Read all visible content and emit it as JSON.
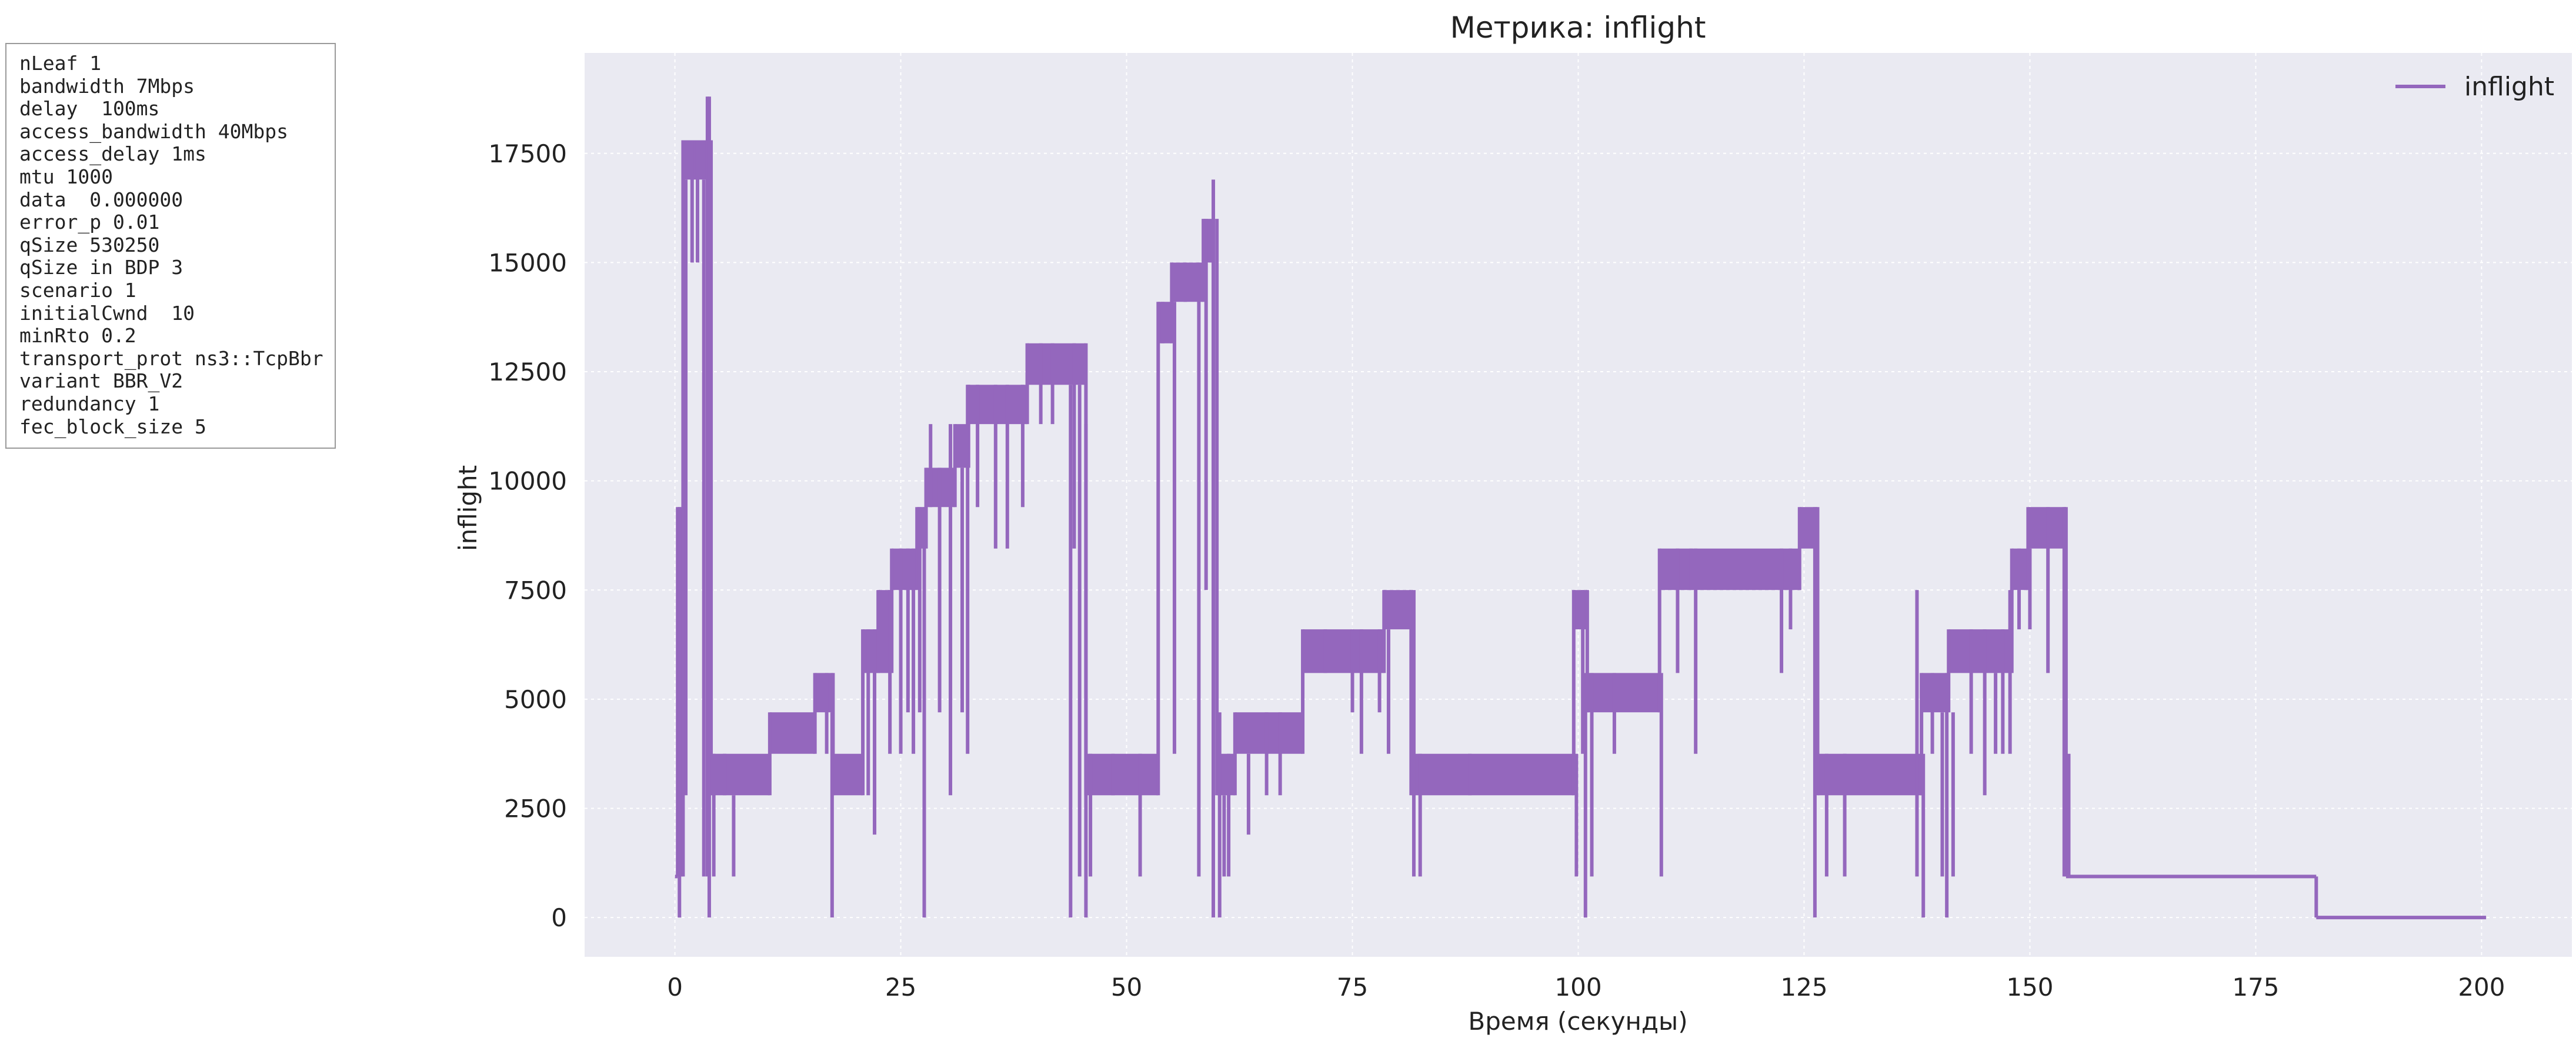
{
  "params": {
    "lines": [
      "nLeaf 1",
      "bandwidth 7Mbps",
      "delay  100ms",
      "access_bandwidth 40Mbps",
      "access_delay 1ms",
      "mtu 1000",
      "data  0.000000",
      "error_p 0.01",
      "qSize 530250",
      "qSize in BDP 3",
      "scenario 1",
      "initialCwnd  10",
      "minRto 0.2",
      "transport_prot ns3::TcpBbr",
      "variant BBR_V2",
      "redundancy 1",
      "fec_block_size 5"
    ]
  },
  "chart_data": {
    "type": "line",
    "title": "Метрика: inflight",
    "xlabel": "Время (секунды)",
    "ylabel": "inflight",
    "xlim": [
      -10,
      210
    ],
    "ylim": [
      -900,
      19800
    ],
    "xticks": [
      0,
      25,
      50,
      75,
      100,
      125,
      150,
      175,
      200
    ],
    "xtick_labels": [
      "0",
      "25",
      "50",
      "75",
      "100",
      "125",
      "150",
      "175",
      "200"
    ],
    "yticks": [
      0,
      2500,
      5000,
      7500,
      10000,
      12500,
      15000,
      17500
    ],
    "ytick_labels": [
      "0",
      "2500",
      "5000",
      "7500",
      "10000",
      "12500",
      "15000",
      "17500"
    ],
    "grid": true,
    "legend_position": "top-right",
    "colors": {
      "line": "#9467bd",
      "plot_bg": "#eaeaf2",
      "grid": "#ffffff"
    },
    "series": [
      {
        "name": "inflight",
        "bands": [
          [
            0.0,
            0.3,
            940,
            940
          ],
          [
            0.3,
            0.9,
            940,
            9400
          ],
          [
            0.9,
            3.7,
            16900,
            17800
          ],
          [
            4.0,
            10.5,
            2800,
            3750
          ],
          [
            10.5,
            15.5,
            3750,
            4700
          ],
          [
            15.5,
            17.5,
            4700,
            5600
          ],
          [
            17.5,
            20.8,
            2800,
            3750
          ],
          [
            20.8,
            22.5,
            5600,
            6600
          ],
          [
            22.5,
            24.0,
            5600,
            7500
          ],
          [
            24.0,
            26.8,
            7500,
            8450
          ],
          [
            26.8,
            27.8,
            8450,
            9400
          ],
          [
            27.8,
            31.0,
            9400,
            10300
          ],
          [
            31.0,
            32.5,
            10300,
            11300
          ],
          [
            32.5,
            39.0,
            11300,
            12200
          ],
          [
            39.0,
            45.5,
            12200,
            13150
          ],
          [
            45.5,
            53.5,
            2800,
            3750
          ],
          [
            53.5,
            55.0,
            13150,
            14100
          ],
          [
            55.0,
            58.5,
            14100,
            15000
          ],
          [
            58.5,
            59.5,
            15000,
            16000
          ],
          [
            60.0,
            62.0,
            2800,
            3750
          ],
          [
            62.0,
            69.5,
            3750,
            4700
          ],
          [
            69.5,
            78.5,
            5600,
            6600
          ],
          [
            78.5,
            81.5,
            6600,
            7500
          ],
          [
            81.5,
            99.5,
            2800,
            3750
          ],
          [
            99.5,
            101.0,
            6600,
            7500
          ],
          [
            101.0,
            109.0,
            4700,
            5600
          ],
          [
            109.0,
            112.5,
            7500,
            8450
          ],
          [
            112.5,
            124.5,
            7500,
            8450
          ],
          [
            124.5,
            126.5,
            8450,
            9400
          ],
          [
            126.5,
            138.0,
            2800,
            3750
          ],
          [
            138.0,
            141.0,
            4700,
            5600
          ],
          [
            141.0,
            148.0,
            5600,
            6600
          ],
          [
            148.0,
            149.8,
            7500,
            8450
          ],
          [
            149.8,
            154.0,
            8450,
            9400
          ],
          [
            154.0,
            181.7,
            940,
            940
          ],
          [
            181.7,
            200.5,
            0,
            0
          ]
        ],
        "spikes": [
          [
            0.5,
            0,
            9400
          ],
          [
            1.2,
            2800,
            16900
          ],
          [
            1.9,
            15000,
            17800
          ],
          [
            2.5,
            17800,
            15000
          ],
          [
            3.2,
            16900,
            940
          ],
          [
            3.6,
            940,
            18800
          ],
          [
            3.8,
            18800,
            0
          ],
          [
            4.3,
            3750,
            940
          ],
          [
            5.5,
            3750,
            2800
          ],
          [
            6.5,
            2800,
            940
          ],
          [
            16.8,
            5600,
            3750
          ],
          [
            17.4,
            4700,
            0
          ],
          [
            21.4,
            6600,
            2800
          ],
          [
            22.1,
            6600,
            1900
          ],
          [
            23.8,
            7500,
            3750
          ],
          [
            25.0,
            8450,
            3750
          ],
          [
            25.8,
            8450,
            4700
          ],
          [
            26.4,
            8450,
            3750
          ],
          [
            27.1,
            9400,
            4700
          ],
          [
            27.6,
            9400,
            0
          ],
          [
            28.3,
            11300,
            9400
          ],
          [
            29.3,
            10300,
            4700
          ],
          [
            30.5,
            11300,
            2800
          ],
          [
            31.8,
            10300,
            4700
          ],
          [
            32.4,
            12200,
            3750
          ],
          [
            33.5,
            12200,
            9400
          ],
          [
            35.5,
            12200,
            8450
          ],
          [
            36.8,
            12200,
            8450
          ],
          [
            38.5,
            12200,
            9400
          ],
          [
            40.5,
            13150,
            11300
          ],
          [
            41.8,
            13150,
            11300
          ],
          [
            43.8,
            12200,
            0
          ],
          [
            44.2,
            13150,
            8450
          ],
          [
            44.8,
            12200,
            940
          ],
          [
            45.5,
            11300,
            0
          ],
          [
            46.0,
            3750,
            940
          ],
          [
            48.5,
            3750,
            2800
          ],
          [
            51.5,
            3750,
            940
          ],
          [
            54.0,
            14100,
            13150
          ],
          [
            55.3,
            14100,
            3750
          ],
          [
            56.5,
            15000,
            14100
          ],
          [
            58.0,
            15000,
            940
          ],
          [
            58.8,
            16000,
            7500
          ],
          [
            59.6,
            16900,
            0
          ],
          [
            60.3,
            4700,
            0
          ],
          [
            60.8,
            2800,
            940
          ],
          [
            61.3,
            3750,
            940
          ],
          [
            63.5,
            3750,
            1900
          ],
          [
            65.5,
            4700,
            2800
          ],
          [
            67.0,
            4700,
            2800
          ],
          [
            72.0,
            6600,
            5600
          ],
          [
            75.0,
            6600,
            4700
          ],
          [
            76.0,
            6600,
            3750
          ],
          [
            78.0,
            6600,
            4700
          ],
          [
            79.0,
            6600,
            3750
          ],
          [
            81.8,
            7500,
            940
          ],
          [
            82.5,
            3750,
            940
          ],
          [
            88.0,
            3750,
            2800
          ],
          [
            99.8,
            3750,
            940
          ],
          [
            100.5,
            7500,
            3750
          ],
          [
            100.8,
            5600,
            0
          ],
          [
            101.5,
            5600,
            940
          ],
          [
            104.0,
            5600,
            3750
          ],
          [
            109.2,
            5600,
            940
          ],
          [
            111.0,
            8450,
            5600
          ],
          [
            113.0,
            8450,
            3750
          ],
          [
            122.5,
            8450,
            5600
          ],
          [
            123.5,
            8450,
            6600
          ],
          [
            126.2,
            9400,
            0
          ],
          [
            127.5,
            3750,
            940
          ],
          [
            129.5,
            3750,
            940
          ],
          [
            137.5,
            7500,
            940
          ],
          [
            138.2,
            3750,
            0
          ],
          [
            139.2,
            5600,
            3750
          ],
          [
            140.3,
            4700,
            940
          ],
          [
            140.8,
            5600,
            0
          ],
          [
            141.5,
            4700,
            940
          ],
          [
            143.5,
            6600,
            3750
          ],
          [
            145.0,
            6600,
            2800
          ],
          [
            146.2,
            5600,
            3750
          ],
          [
            147.0,
            6600,
            3750
          ],
          [
            147.8,
            7500,
            3750
          ],
          [
            148.8,
            8450,
            6600
          ],
          [
            150.0,
            8450,
            6600
          ],
          [
            152.0,
            9400,
            5600
          ],
          [
            153.8,
            9400,
            940
          ],
          [
            154.3,
            3750,
            940
          ]
        ]
      }
    ]
  }
}
